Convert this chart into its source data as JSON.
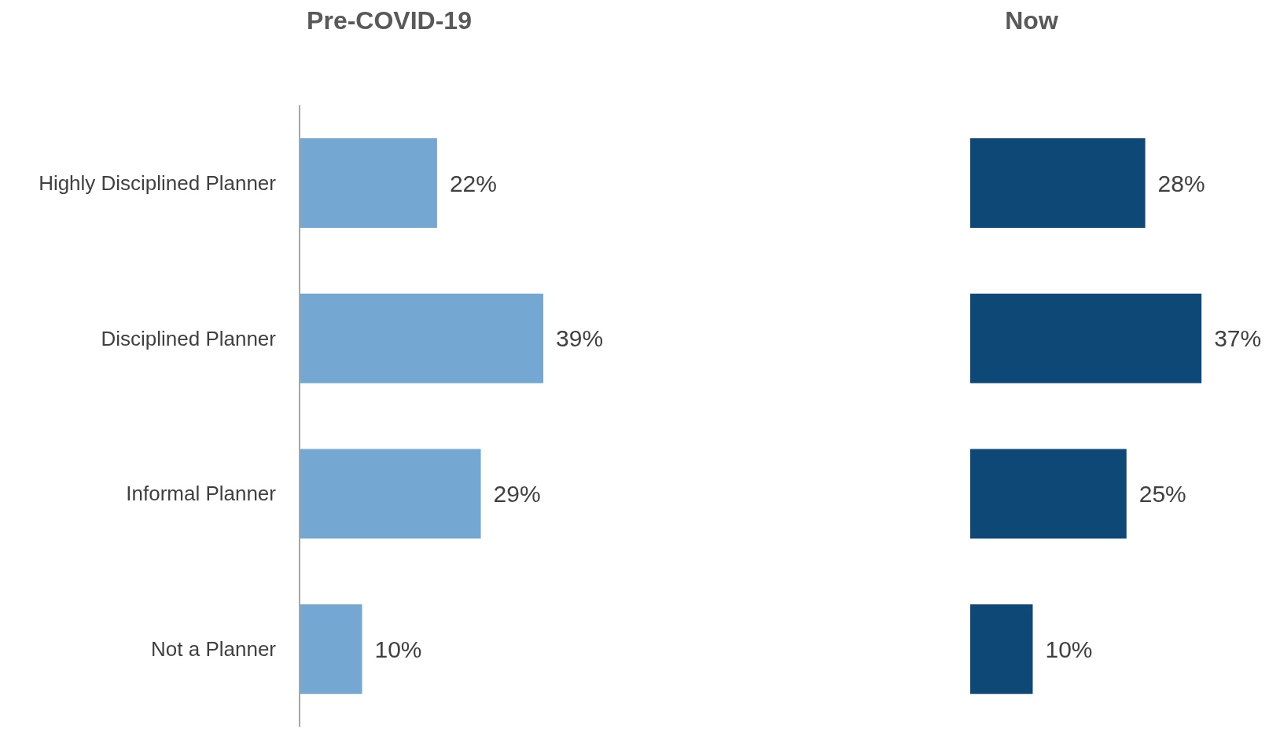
{
  "chart_data": [
    {
      "type": "bar",
      "title": "Pre-COVID-19",
      "orientation": "horizontal",
      "categories": [
        "Highly Disciplined Planner",
        "Disciplined Planner",
        "Informal Planner",
        "Not a Planner"
      ],
      "values": [
        22,
        39,
        29,
        10
      ],
      "value_labels": [
        "22%",
        "39%",
        "29%",
        "10%"
      ],
      "color": "#74a7d2",
      "tick_labels": "y"
    },
    {
      "type": "bar",
      "title": "Now",
      "orientation": "horizontal",
      "categories": [
        null,
        null,
        null,
        null
      ],
      "values": [
        28,
        37,
        25,
        10
      ],
      "value_labels": [
        "28%",
        "37%",
        "25%",
        "10%"
      ],
      "color": "#0e4877",
      "tick_labels": false
    }
  ]
}
